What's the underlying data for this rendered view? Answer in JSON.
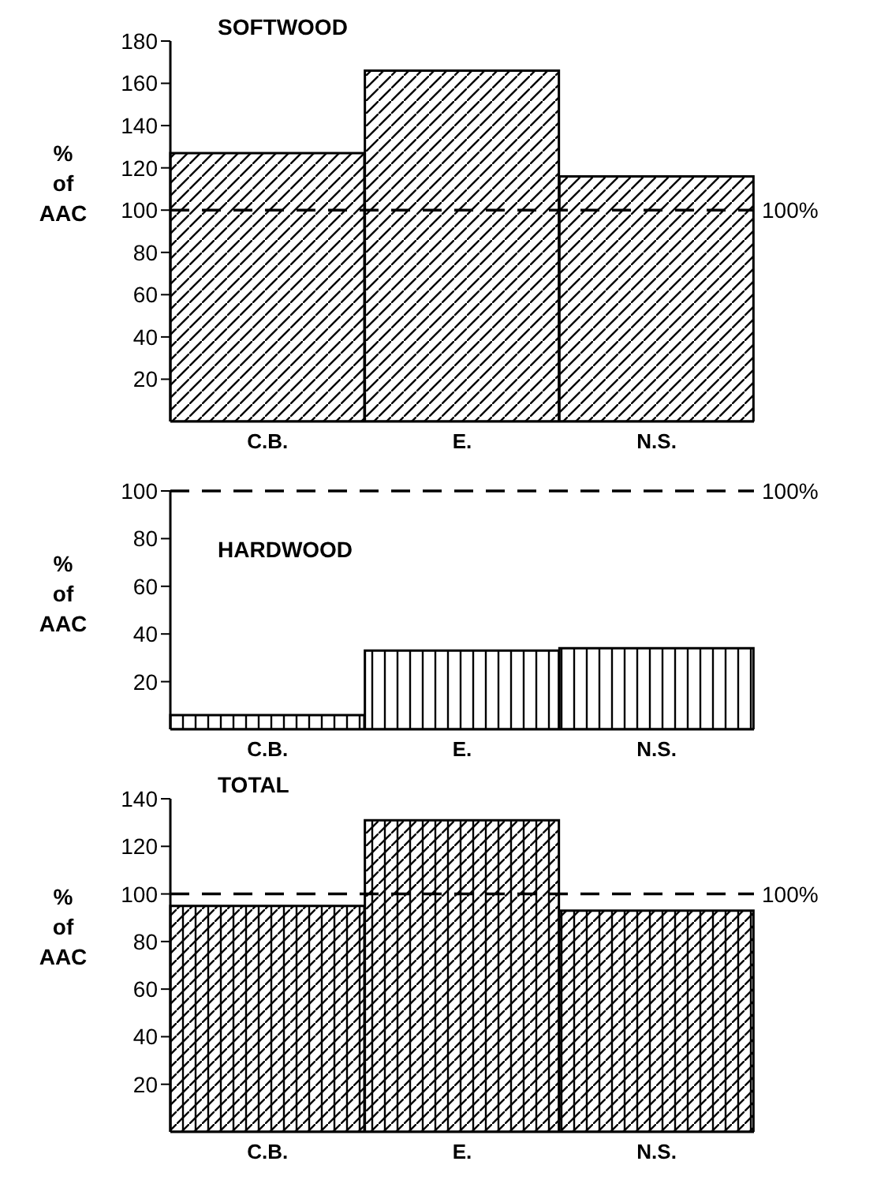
{
  "chart_data": [
    {
      "type": "bar",
      "title": "SOFTWOOD",
      "ylabel": "% of AAC",
      "categories": [
        "C.B.",
        "E.",
        "N.S."
      ],
      "values": [
        127,
        166,
        116
      ],
      "color": "#000000",
      "ylim": [
        0,
        180
      ],
      "yticks": [
        20,
        40,
        60,
        80,
        100,
        120,
        140,
        160,
        180
      ],
      "ref_lines": [
        {
          "axis": "y",
          "value": 100,
          "label": "100%",
          "line_style": "dashed"
        }
      ],
      "grid": false,
      "legend": false
    },
    {
      "type": "bar",
      "title": "HARDWOOD",
      "ylabel": "% of AAC",
      "categories": [
        "C.B.",
        "E.",
        "N.S."
      ],
      "values": [
        6,
        33,
        34
      ],
      "color": "#000000",
      "ylim": [
        0,
        100
      ],
      "yticks": [
        20,
        40,
        60,
        80,
        100
      ],
      "ref_lines": [
        {
          "axis": "y",
          "value": 100,
          "label": "100%",
          "line_style": "dashed"
        }
      ],
      "grid": false,
      "legend": false
    },
    {
      "type": "bar",
      "title": "TOTAL",
      "ylabel": "% of AAC",
      "categories": [
        "C.B.",
        "E.",
        "N.S."
      ],
      "values": [
        95,
        131,
        93
      ],
      "color": "#000000",
      "ylim": [
        0,
        140
      ],
      "yticks": [
        20,
        40,
        60,
        80,
        100,
        120,
        140
      ],
      "ref_lines": [
        {
          "axis": "y",
          "value": 100,
          "label": "100%",
          "line_style": "dashed"
        }
      ],
      "grid": false,
      "legend": false
    }
  ]
}
